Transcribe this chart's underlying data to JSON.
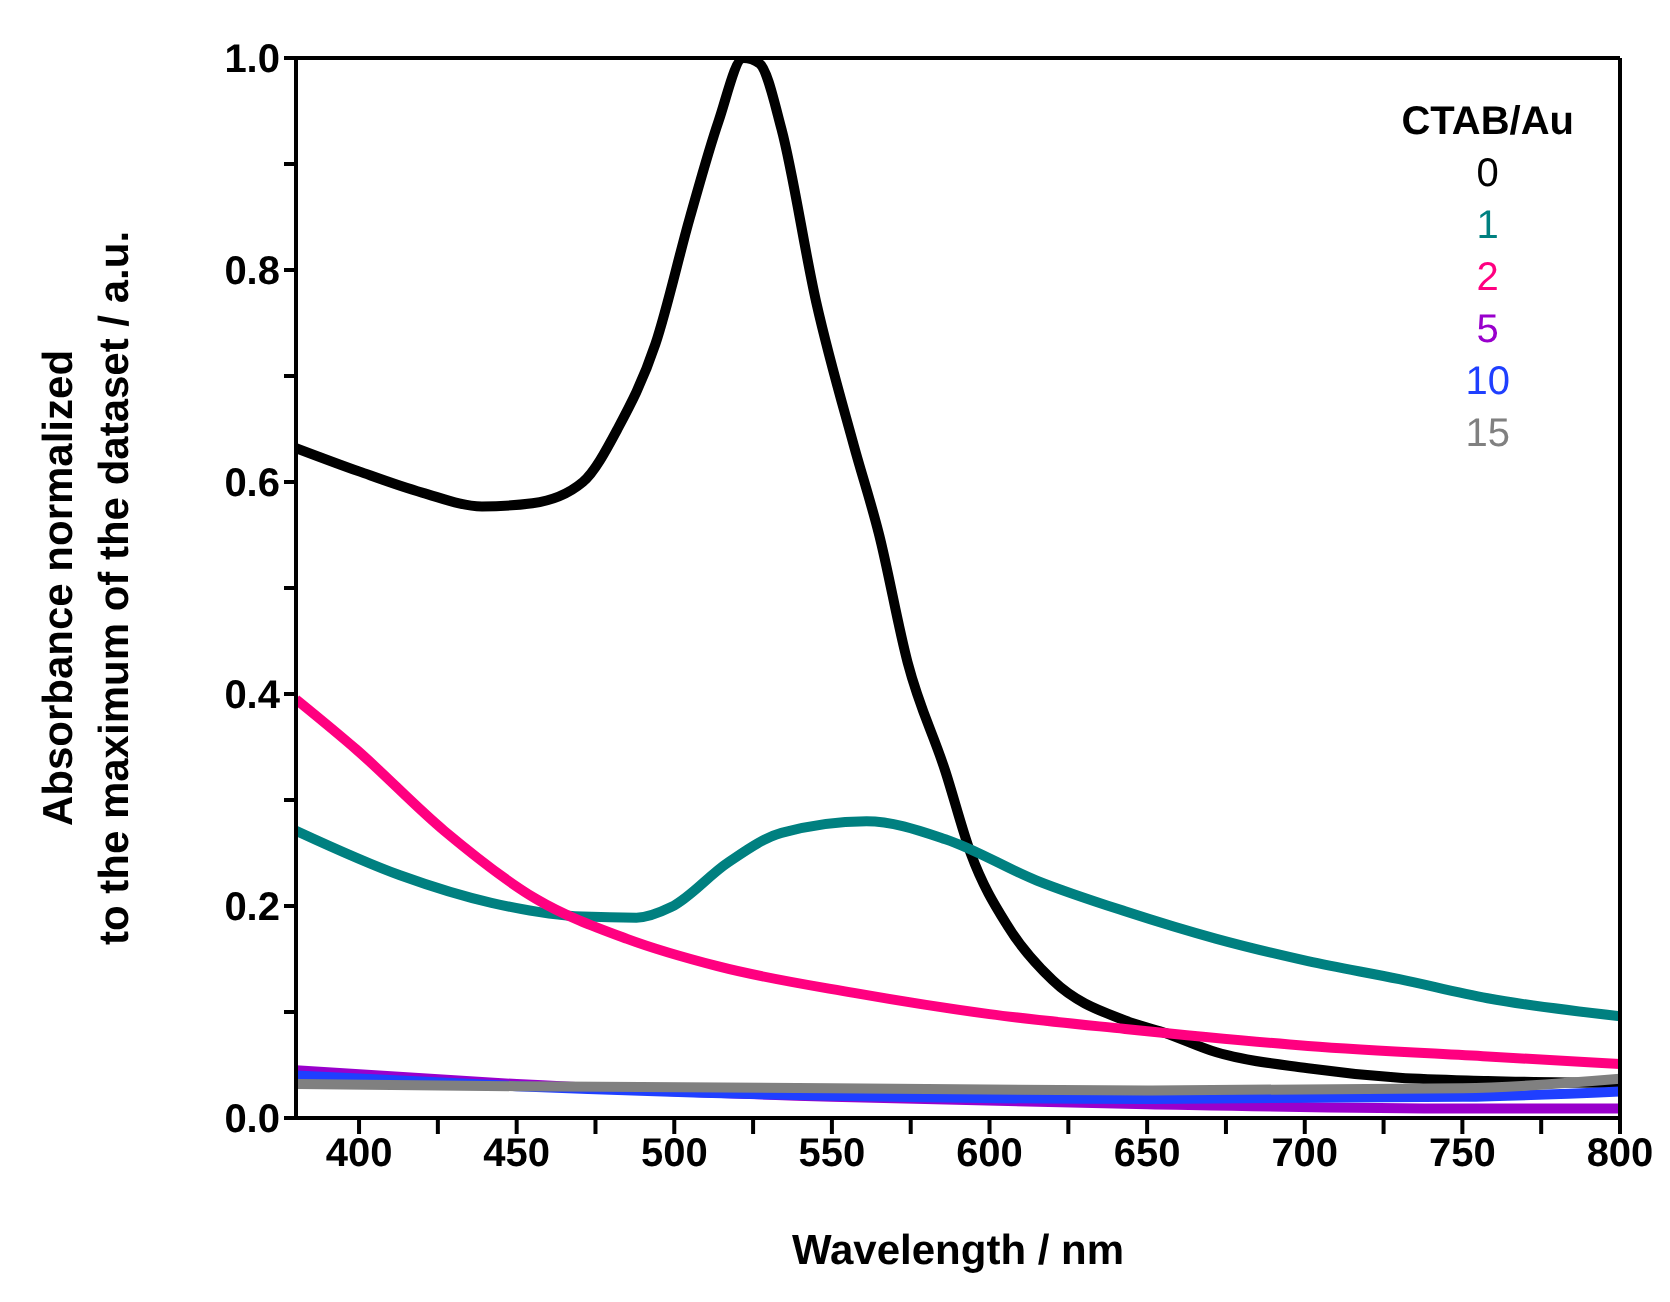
{
  "chart_data": {
    "type": "line",
    "xlabel": "Wavelength / nm",
    "ylabel": "Absorbance normalized\nto the maximum of the dataset / a.u.",
    "legend_title": "CTAB/Au",
    "legend": "top right",
    "xlim": [
      380,
      800
    ],
    "ylim": [
      0,
      1
    ],
    "xticks": [
      400,
      {
        "value": 425,
        "label": null
      },
      450,
      {
        "value": 475,
        "label": null
      },
      500,
      {
        "value": 525,
        "label": null
      },
      550,
      {
        "value": 575,
        "label": null
      },
      600,
      {
        "value": 625,
        "label": null
      },
      650,
      {
        "value": 675,
        "label": null
      },
      700,
      {
        "value": 725,
        "label": null
      },
      750,
      {
        "value": 775,
        "label": null
      },
      800
    ],
    "yticks": [
      {
        "value": 0,
        "label": "0.0"
      },
      {
        "value": 0.1,
        "label": null
      },
      0.2,
      {
        "value": 0.3,
        "label": null
      },
      0.4,
      {
        "value": 0.5,
        "label": null
      },
      0.6,
      {
        "value": 0.7,
        "label": null
      },
      0.8,
      {
        "value": 0.9,
        "label": null
      },
      {
        "value": 1,
        "label": "1.0"
      }
    ],
    "marker": "none",
    "line_style": "solid",
    "series": [
      {
        "name": "0",
        "color": "#000000",
        "x": [
          380,
          400,
          420,
          439,
          455,
          471,
          482,
          494,
          505,
          514,
          522,
          527,
          534,
          545,
          557,
          565,
          574,
          586,
          594,
          606,
          620,
          643,
          655,
          672,
          701,
          730,
          758,
          800
        ],
        "values": [
          0.632,
          0.61,
          0.59,
          0.577,
          0.58,
          0.6,
          0.65,
          0.73,
          0.85,
          0.94,
          1.0,
          0.995,
          0.933,
          0.77,
          0.634,
          0.55,
          0.43,
          0.327,
          0.25,
          0.18,
          0.13,
          0.092,
          0.081,
          0.062,
          0.047,
          0.038,
          0.035,
          0.033
        ]
      },
      {
        "name": "1",
        "color": "#008080",
        "x": [
          380,
          413,
          442,
          471,
          488,
          499,
          517,
          534,
          561,
          586,
          615,
          643,
          672,
          701,
          730,
          758,
          800
        ],
        "values": [
          0.271,
          0.229,
          0.203,
          0.19,
          0.189,
          0.199,
          0.241,
          0.269,
          0.28,
          0.263,
          0.224,
          0.195,
          0.169,
          0.148,
          0.131,
          0.113,
          0.096
        ]
      },
      {
        "name": "2",
        "color": "#ff0080",
        "x": [
          380,
          399,
          427,
          456,
          485,
          514,
          557,
          600,
          643,
          701,
          758,
          800
        ],
        "values": [
          0.395,
          0.348,
          0.271,
          0.207,
          0.169,
          0.143,
          0.118,
          0.098,
          0.084,
          0.068,
          0.058,
          0.051
        ]
      },
      {
        "name": "5",
        "color": "#9900cc",
        "x": [
          380,
          450,
          550,
          650,
          750,
          800
        ],
        "values": [
          0.045,
          0.032,
          0.02,
          0.013,
          0.009,
          0.009
        ]
      },
      {
        "name": "10",
        "color": "#1f3fff",
        "x": [
          380,
          450,
          550,
          650,
          750,
          800
        ],
        "values": [
          0.04,
          0.03,
          0.021,
          0.018,
          0.02,
          0.025
        ]
      },
      {
        "name": "15",
        "color": "#808080",
        "x": [
          380,
          450,
          550,
          650,
          750,
          800
        ],
        "values": [
          0.032,
          0.03,
          0.028,
          0.026,
          0.028,
          0.037
        ]
      }
    ]
  }
}
